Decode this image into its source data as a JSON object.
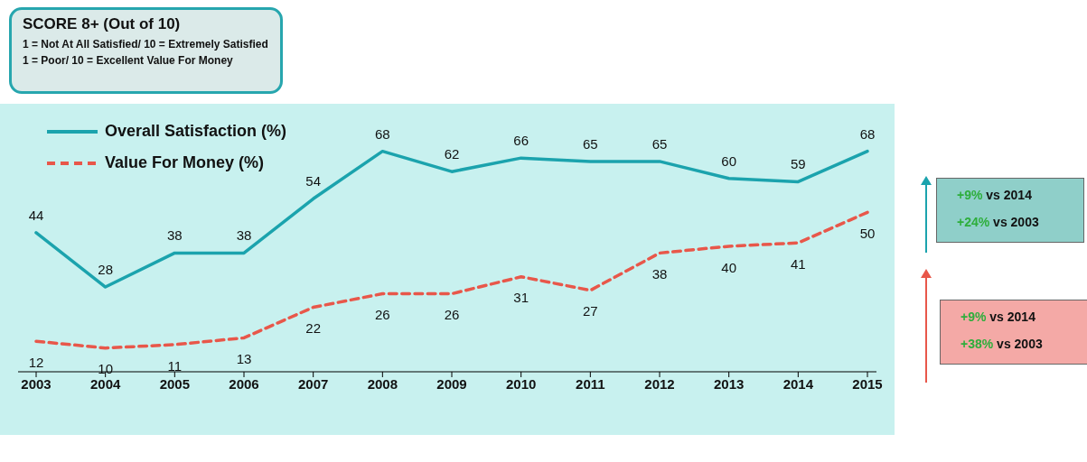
{
  "chart_data": {
    "type": "line",
    "title": "SCORE 8+ (Out of 10)",
    "subtitle": "1 = Not At All Satisfied/ 10 = Extremely Satisfied\n1 = Poor/ 10 = Excellent Value For Money",
    "categories": [
      "2003",
      "2004",
      "2005",
      "2006",
      "2007",
      "2008",
      "2009",
      "2010",
      "2011",
      "2012",
      "2013",
      "2014",
      "2015"
    ],
    "series": [
      {
        "name": "Overall Satisfaction (%)",
        "color": "#1ba3ad",
        "line_style": "solid",
        "values": [
          44,
          28,
          38,
          38,
          54,
          68,
          62,
          66,
          65,
          65,
          60,
          59,
          68
        ]
      },
      {
        "name": "Value For Money (%)",
        "color": "#e8574a",
        "line_style": "dashed",
        "values": [
          12,
          10,
          11,
          13,
          22,
          26,
          26,
          31,
          27,
          38,
          40,
          41,
          50
        ]
      }
    ],
    "data_labels": true,
    "legend": "top left",
    "marker": "none",
    "grid": false,
    "annotations": [
      "+9% vs 2014",
      "+24% vs 2003",
      "+9% vs 2014",
      "+38% vs 2003"
    ]
  }
}
